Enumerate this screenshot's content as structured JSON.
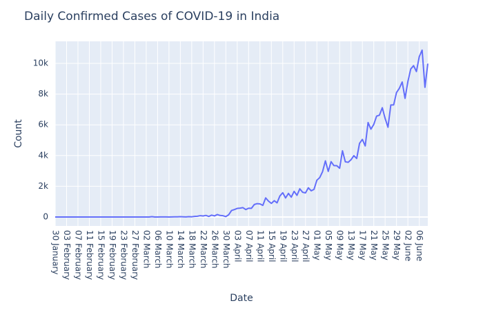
{
  "chart_data": {
    "type": "line",
    "title": "Daily Confirmed Cases of COVID-19 in India",
    "x_label": "Date",
    "y_label": "Count",
    "categories": [
      "30 January",
      null,
      null,
      null,
      "03 February",
      null,
      null,
      null,
      "07 February",
      null,
      null,
      null,
      "11 February",
      null,
      null,
      null,
      "15 February",
      null,
      null,
      null,
      "19 February",
      null,
      null,
      null,
      "23 February",
      null,
      null,
      null,
      "27 February",
      null,
      null,
      null,
      "02 March",
      null,
      null,
      null,
      "06 March",
      null,
      null,
      null,
      "10 March",
      null,
      null,
      null,
      "14 March",
      null,
      null,
      null,
      "18 March",
      null,
      null,
      null,
      "22 March",
      null,
      null,
      null,
      "26 March",
      null,
      null,
      null,
      "30 March",
      null,
      null,
      null,
      "03 April",
      null,
      null,
      null,
      "07 April",
      null,
      null,
      null,
      "11 April",
      null,
      null,
      null,
      "15 April",
      null,
      null,
      null,
      "19 April",
      null,
      null,
      null,
      "23 April",
      null,
      null,
      null,
      "27 April",
      null,
      null,
      null,
      "01 May",
      null,
      null,
      null,
      "05 May",
      null,
      null,
      null,
      "09 May",
      null,
      null,
      null,
      "13 May",
      null,
      null,
      null,
      "17 May",
      null,
      null,
      null,
      "21 May",
      null,
      null,
      null,
      "25 May",
      null,
      null,
      null,
      "29 May",
      null,
      null,
      null,
      "02 June",
      null,
      null,
      null,
      "06 June",
      null,
      null,
      null
    ],
    "values": [
      1,
      0,
      0,
      1,
      1,
      0,
      0,
      0,
      0,
      0,
      0,
      0,
      0,
      0,
      0,
      0,
      0,
      0,
      0,
      0,
      0,
      0,
      0,
      0,
      0,
      0,
      0,
      0,
      0,
      0,
      0,
      0,
      2,
      1,
      22,
      2,
      1,
      3,
      5,
      4,
      1,
      8,
      11,
      9,
      20,
      11,
      6,
      23,
      14,
      38,
      50,
      86,
      66,
      103,
      37,
      121,
      70,
      160,
      100,
      82,
      27,
      146,
      424,
      486,
      560,
      579,
      609,
      484,
      573,
      565,
      813,
      871,
      854,
      758,
      1243,
      1031,
      886,
      1061,
      922,
      1371,
      1580,
      1239,
      1537,
      1292,
      1667,
      1408,
      1835,
      1607,
      1568,
      1902,
      1705,
      1801,
      2396,
      2564,
      2952,
      3656,
      2971,
      3602,
      3344,
      3339,
      3175,
      4311,
      3592,
      3562,
      3726,
      3991,
      3808,
      4794,
      5050,
      4628,
      6147,
      5720,
      6023,
      6568,
      6629,
      7113,
      6414,
      5843,
      7293,
      7300,
      8105,
      8380,
      8789,
      7723,
      8821,
      9633,
      9851,
      9471,
      10438,
      10864,
      8442,
      9985
    ],
    "color": "#636efa",
    "ylim": [
      -583,
      11435
    ],
    "yticks": [
      0,
      {
        "value": 2000,
        "label": "2k"
      },
      {
        "value": 4000,
        "label": "4k"
      },
      {
        "value": 6000,
        "label": "6k"
      },
      {
        "value": 8000,
        "label": "8k"
      },
      {
        "value": 10000,
        "label": "10k"
      }
    ],
    "grid": true
  }
}
